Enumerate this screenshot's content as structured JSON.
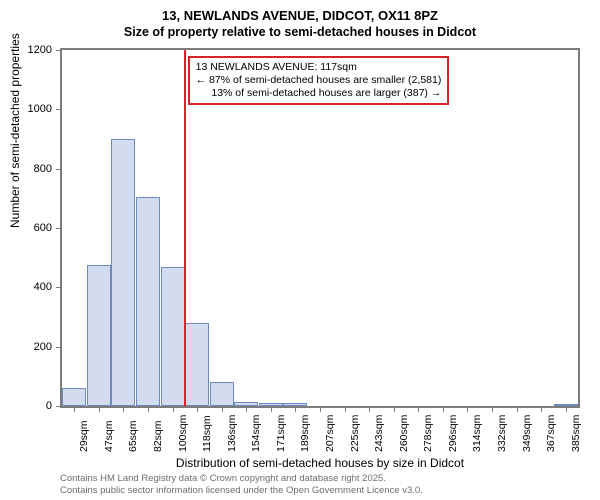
{
  "title_line1": "13, NEWLANDS AVENUE, DIDCOT, OX11 8PZ",
  "title_line2": "Size of property relative to semi-detached houses in Didcot",
  "ylabel": "Number of semi-detached properties",
  "xlabel": "Distribution of semi-detached houses by size in Didcot",
  "chart": {
    "type": "bar",
    "ylim": [
      0,
      1200
    ],
    "ytick_step": 200,
    "yticks": [
      0,
      200,
      400,
      600,
      800,
      1000,
      1200
    ],
    "categories": [
      "29sqm",
      "47sqm",
      "65sqm",
      "82sqm",
      "100sqm",
      "118sqm",
      "136sqm",
      "154sqm",
      "171sqm",
      "189sqm",
      "207sqm",
      "225sqm",
      "243sqm",
      "260sqm",
      "278sqm",
      "296sqm",
      "314sqm",
      "332sqm",
      "349sqm",
      "367sqm",
      "385sqm"
    ],
    "values": [
      60,
      475,
      900,
      705,
      470,
      280,
      80,
      15,
      10,
      10,
      0,
      0,
      0,
      0,
      0,
      0,
      0,
      0,
      0,
      0,
      5
    ],
    "bar_fill": "#d3dcef",
    "bar_stroke": "#6d89bf",
    "bar_width": 0.98,
    "border_color": "#7c7c7c",
    "background_color": "#ffffff",
    "reference_line": {
      "at_index": 4.95,
      "color": "#d8232a"
    },
    "annotation": {
      "lines": [
        "13 NEWLANDS AVENUE: 117sqm",
        "← 87% of semi-detached houses are smaller (2,581)",
        "13% of semi-detached houses are larger (387) →"
      ],
      "border_color": "#d8232a",
      "text_color": "#000000"
    },
    "tick_fontsize": 10.5,
    "label_fontsize": 12,
    "title_fontsize": 13
  },
  "footer": {
    "line1": "Contains HM Land Registry data © Crown copyright and database right 2025.",
    "line2": "Contains public sector information licensed under the Open Government Licence v3.0.",
    "color": "#6e6e6e"
  }
}
